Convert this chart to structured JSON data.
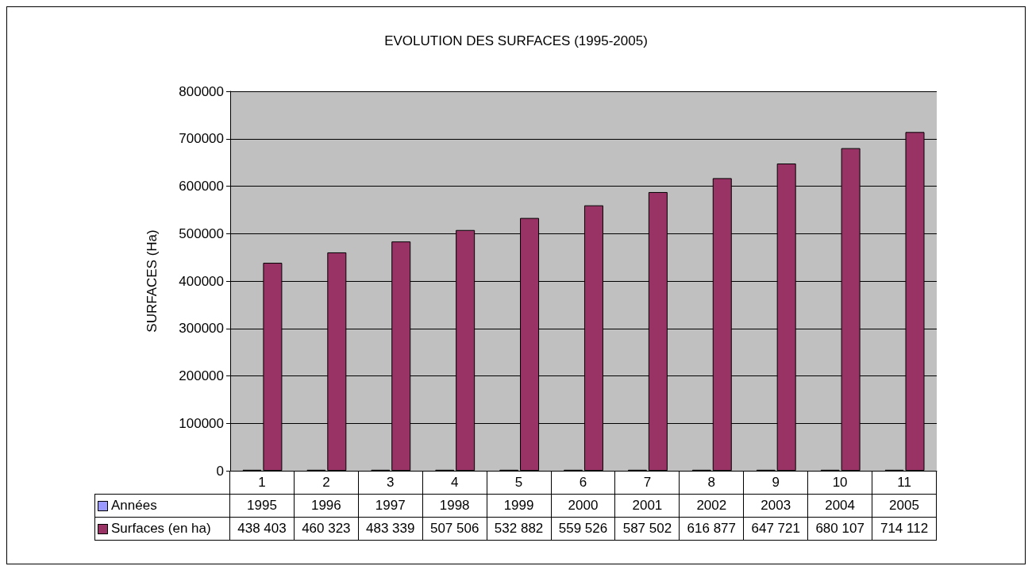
{
  "chart_data": {
    "type": "bar",
    "title": "EVOLUTION DES SURFACES (1995-2005)",
    "ylabel": "SURFACES (Ha)",
    "categories": [
      "1",
      "2",
      "3",
      "4",
      "5",
      "6",
      "7",
      "8",
      "9",
      "10",
      "11"
    ],
    "series": [
      {
        "name": "Années",
        "color": "#9999ff",
        "values": [
          1995,
          1996,
          1997,
          1998,
          1999,
          2000,
          2001,
          2002,
          2003,
          2004,
          2005
        ],
        "value_labels": [
          "1995",
          "1996",
          "1997",
          "1998",
          "1999",
          "2000",
          "2001",
          "2002",
          "2003",
          "2004",
          "2005"
        ]
      },
      {
        "name": "Surfaces (en ha)",
        "color": "#993366",
        "values": [
          438403,
          460323,
          483339,
          507506,
          532882,
          559526,
          587502,
          616877,
          647721,
          680107,
          714112
        ],
        "value_labels": [
          "438 403",
          "460 323",
          "483 339",
          "507 506",
          "532 882",
          "559 526",
          "587 502",
          "616 877",
          "647 721",
          "680 107",
          "714 112"
        ]
      }
    ],
    "ylim": [
      0,
      800000
    ],
    "yticks": [
      0,
      100000,
      200000,
      300000,
      400000,
      500000,
      600000,
      700000,
      800000
    ],
    "grid": "y",
    "legend": "bottom",
    "data_labels": true
  }
}
